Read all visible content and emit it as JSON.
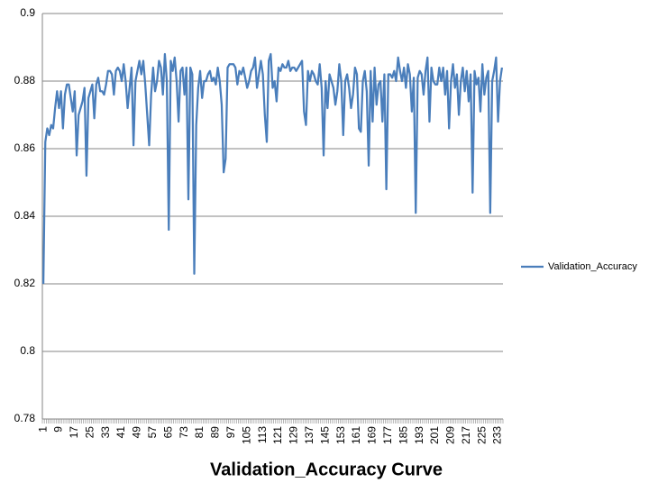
{
  "chart_data": {
    "type": "line",
    "title": "Validation_Accuracy Curve",
    "categories": [
      1,
      null,
      null,
      null,
      null,
      null,
      null,
      null,
      9,
      null,
      null,
      null,
      null,
      null,
      null,
      null,
      17,
      null,
      null,
      null,
      null,
      null,
      null,
      null,
      25,
      null,
      null,
      null,
      null,
      null,
      null,
      null,
      33,
      null,
      null,
      null,
      null,
      null,
      null,
      null,
      41,
      null,
      null,
      null,
      null,
      null,
      null,
      null,
      49,
      null,
      null,
      null,
      null,
      null,
      null,
      null,
      57,
      null,
      null,
      null,
      null,
      null,
      null,
      null,
      65,
      null,
      null,
      null,
      null,
      null,
      null,
      null,
      73,
      null,
      null,
      null,
      null,
      null,
      null,
      null,
      81,
      null,
      null,
      null,
      null,
      null,
      null,
      null,
      89,
      null,
      null,
      null,
      null,
      null,
      null,
      null,
      97,
      null,
      null,
      null,
      null,
      null,
      null,
      null,
      105,
      null,
      null,
      null,
      null,
      null,
      null,
      null,
      113,
      null,
      null,
      null,
      null,
      null,
      null,
      null,
      121,
      null,
      null,
      null,
      null,
      null,
      null,
      null,
      129,
      null,
      null,
      null,
      null,
      null,
      null,
      null,
      137,
      null,
      null,
      null,
      null,
      null,
      null,
      null,
      145,
      null,
      null,
      null,
      null,
      null,
      null,
      null,
      153,
      null,
      null,
      null,
      null,
      null,
      null,
      null,
      161,
      null,
      null,
      null,
      null,
      null,
      null,
      null,
      169,
      null,
      null,
      null,
      null,
      null,
      null,
      null,
      177,
      null,
      null,
      null,
      null,
      null,
      null,
      null,
      185,
      null,
      null,
      null,
      null,
      null,
      null,
      null,
      193,
      null,
      null,
      null,
      null,
      null,
      null,
      null,
      201,
      null,
      null,
      null,
      null,
      null,
      null,
      null,
      209,
      null,
      null,
      null,
      null,
      null,
      null,
      null,
      217,
      null,
      null,
      null,
      null,
      null,
      null,
      null,
      225,
      null,
      null,
      null,
      null,
      null,
      null,
      null,
      233,
      null,
      null
    ],
    "series": [
      {
        "name": "Validation_Accuracy",
        "color": "#4a7ebb",
        "values": [
          0.82,
          0.862,
          0.866,
          0.864,
          0.867,
          0.866,
          0.872,
          0.877,
          0.872,
          0.877,
          0.866,
          0.876,
          0.879,
          0.879,
          0.875,
          0.871,
          0.877,
          0.858,
          0.87,
          0.872,
          0.874,
          0.878,
          0.852,
          0.875,
          0.877,
          0.879,
          0.869,
          0.879,
          0.881,
          0.877,
          0.877,
          0.876,
          0.879,
          0.883,
          0.883,
          0.882,
          0.876,
          0.883,
          0.884,
          0.883,
          0.88,
          0.885,
          0.88,
          0.872,
          0.878,
          0.884,
          0.861,
          0.88,
          0.883,
          0.886,
          0.882,
          0.886,
          0.879,
          0.87,
          0.861,
          0.876,
          0.884,
          0.877,
          0.88,
          0.886,
          0.884,
          0.876,
          0.888,
          0.88,
          0.836,
          0.886,
          0.883,
          0.887,
          0.88,
          0.868,
          0.883,
          0.884,
          0.876,
          0.884,
          0.845,
          0.884,
          0.882,
          0.823,
          0.867,
          0.878,
          0.883,
          0.875,
          0.88,
          0.88,
          0.882,
          0.883,
          0.88,
          0.881,
          0.879,
          0.884,
          0.88,
          0.873,
          0.853,
          0.857,
          0.884,
          0.885,
          0.885,
          0.885,
          0.884,
          0.879,
          0.883,
          0.882,
          0.884,
          0.881,
          0.878,
          0.88,
          0.883,
          0.884,
          0.887,
          0.878,
          0.882,
          0.886,
          0.882,
          0.87,
          0.862,
          0.886,
          0.888,
          0.878,
          0.88,
          0.874,
          0.884,
          0.883,
          0.885,
          0.884,
          0.884,
          0.886,
          0.883,
          0.884,
          0.884,
          0.883,
          0.884,
          0.885,
          0.886,
          0.871,
          0.867,
          0.883,
          0.88,
          0.883,
          0.882,
          0.88,
          0.879,
          0.885,
          0.878,
          0.858,
          0.88,
          0.872,
          0.882,
          0.88,
          0.878,
          0.873,
          0.877,
          0.885,
          0.88,
          0.864,
          0.88,
          0.882,
          0.878,
          0.872,
          0.876,
          0.884,
          0.882,
          0.866,
          0.865,
          0.88,
          0.883,
          0.877,
          0.855,
          0.883,
          0.868,
          0.884,
          0.873,
          0.879,
          0.88,
          0.868,
          0.882,
          0.848,
          0.882,
          0.882,
          0.881,
          0.883,
          0.88,
          0.887,
          0.883,
          0.88,
          0.884,
          0.878,
          0.885,
          0.882,
          0.871,
          0.881,
          0.841,
          0.881,
          0.883,
          0.882,
          0.876,
          0.883,
          0.887,
          0.868,
          0.884,
          0.88,
          0.879,
          0.879,
          0.884,
          0.88,
          0.884,
          0.876,
          0.883,
          0.866,
          0.88,
          0.885,
          0.878,
          0.882,
          0.87,
          0.88,
          0.884,
          0.877,
          0.883,
          0.874,
          0.882,
          0.847,
          0.883,
          0.879,
          0.881,
          0.871,
          0.885,
          0.876,
          0.881,
          0.883,
          0.841,
          0.88,
          0.883,
          0.887,
          0.868,
          0.88,
          0.884
        ]
      }
    ],
    "ylim": [
      0.78,
      0.9
    ],
    "yticks": [
      0.78,
      0.8,
      0.82,
      0.84,
      0.86,
      0.88,
      0.9
    ],
    "grid": true,
    "legend": "right"
  }
}
